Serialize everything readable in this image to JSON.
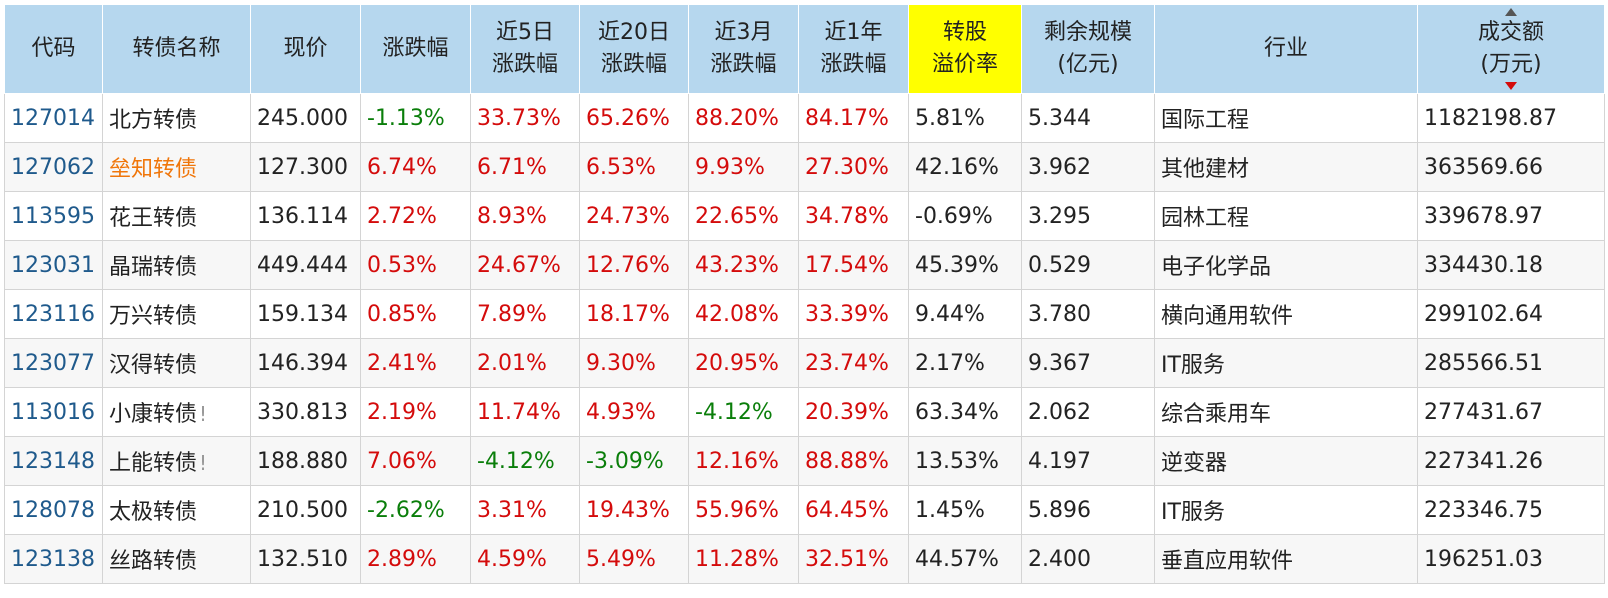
{
  "headers": [
    {
      "key": "code",
      "lines": [
        "代码"
      ]
    },
    {
      "key": "name",
      "lines": [
        "转债名称"
      ]
    },
    {
      "key": "price",
      "lines": [
        "现价"
      ]
    },
    {
      "key": "chg",
      "lines": [
        "涨跌幅"
      ]
    },
    {
      "key": "chg5d",
      "lines": [
        "近5日",
        "涨跌幅"
      ]
    },
    {
      "key": "chg20d",
      "lines": [
        "近20日",
        "涨跌幅"
      ]
    },
    {
      "key": "chg3m",
      "lines": [
        "近3月",
        "涨跌幅"
      ]
    },
    {
      "key": "chg1y",
      "lines": [
        "近1年",
        "涨跌幅"
      ]
    },
    {
      "key": "premium",
      "lines": [
        "转股",
        "溢价率"
      ],
      "highlight": true
    },
    {
      "key": "scale",
      "lines": [
        "剩余规模",
        "(亿元)"
      ]
    },
    {
      "key": "industry",
      "lines": [
        "行业"
      ]
    },
    {
      "key": "volume",
      "lines": [
        "成交额",
        "(万元)"
      ],
      "sorted": "desc"
    }
  ],
  "rows": [
    {
      "code": "127014",
      "name": "北方转债",
      "price": "245.000",
      "chg": "-1.13%",
      "chg5d": "33.73%",
      "chg20d": "65.26%",
      "chg3m": "88.20%",
      "chg1y": "84.17%",
      "premium": "5.81%",
      "scale": "5.344",
      "industry": "国际工程",
      "volume": "1182198.87"
    },
    {
      "code": "127062",
      "name": "垒知转债",
      "name_highlight": true,
      "price": "127.300",
      "chg": "6.74%",
      "chg5d": "6.71%",
      "chg20d": "6.53%",
      "chg3m": "9.93%",
      "chg1y": "27.30%",
      "premium": "42.16%",
      "scale": "3.962",
      "industry": "其他建材",
      "volume": "363569.66"
    },
    {
      "code": "113595",
      "name": "花王转债",
      "price": "136.114",
      "chg": "2.72%",
      "chg5d": "8.93%",
      "chg20d": "24.73%",
      "chg3m": "22.65%",
      "chg1y": "34.78%",
      "premium": "-0.69%",
      "scale": "3.295",
      "industry": "园林工程",
      "volume": "339678.97"
    },
    {
      "code": "123031",
      "name": "晶瑞转债",
      "price": "449.444",
      "chg": "0.53%",
      "chg5d": "24.67%",
      "chg20d": "12.76%",
      "chg3m": "43.23%",
      "chg1y": "17.54%",
      "premium": "45.39%",
      "scale": "0.529",
      "industry": "电子化学品",
      "volume": "334430.18"
    },
    {
      "code": "123116",
      "name": "万兴转债",
      "price": "159.134",
      "chg": "0.85%",
      "chg5d": "7.89%",
      "chg20d": "18.17%",
      "chg3m": "42.08%",
      "chg1y": "33.39%",
      "premium": "9.44%",
      "scale": "3.780",
      "industry": "横向通用软件",
      "volume": "299102.64"
    },
    {
      "code": "123077",
      "name": "汉得转债",
      "price": "146.394",
      "chg": "2.41%",
      "chg5d": "2.01%",
      "chg20d": "9.30%",
      "chg3m": "20.95%",
      "chg1y": "23.74%",
      "premium": "2.17%",
      "scale": "9.367",
      "industry": "IT服务",
      "volume": "285566.51"
    },
    {
      "code": "113016",
      "name": "小康转债",
      "warn": "!",
      "price": "330.813",
      "chg": "2.19%",
      "chg5d": "11.74%",
      "chg20d": "4.93%",
      "chg3m": "-4.12%",
      "chg1y": "20.39%",
      "premium": "63.34%",
      "scale": "2.062",
      "industry": "综合乘用车",
      "volume": "277431.67"
    },
    {
      "code": "123148",
      "name": "上能转债",
      "warn": "!",
      "price": "188.880",
      "chg": "7.06%",
      "chg5d": "-4.12%",
      "chg20d": "-3.09%",
      "chg3m": "12.16%",
      "chg1y": "88.88%",
      "premium": "13.53%",
      "scale": "4.197",
      "industry": "逆变器",
      "volume": "227341.26"
    },
    {
      "code": "128078",
      "name": "太极转债",
      "price": "210.500",
      "chg": "-2.62%",
      "chg5d": "3.31%",
      "chg20d": "19.43%",
      "chg3m": "55.96%",
      "chg1y": "64.45%",
      "premium": "1.45%",
      "scale": "5.896",
      "industry": "IT服务",
      "volume": "223346.75"
    },
    {
      "code": "123138",
      "name": "丝路转债",
      "price": "132.510",
      "chg": "2.89%",
      "chg5d": "4.59%",
      "chg20d": "5.49%",
      "chg3m": "11.28%",
      "chg1y": "32.51%",
      "premium": "44.57%",
      "scale": "2.400",
      "industry": "垂直应用软件",
      "volume": "196251.03"
    }
  ],
  "colors": {
    "header_bg": "#b6d7ee",
    "highlight_bg": "#ffff00",
    "positive": "#d40b0b",
    "negative": "#0a7e0a",
    "code_link": "#1f5a8c",
    "name_highlight": "#f0760a"
  }
}
